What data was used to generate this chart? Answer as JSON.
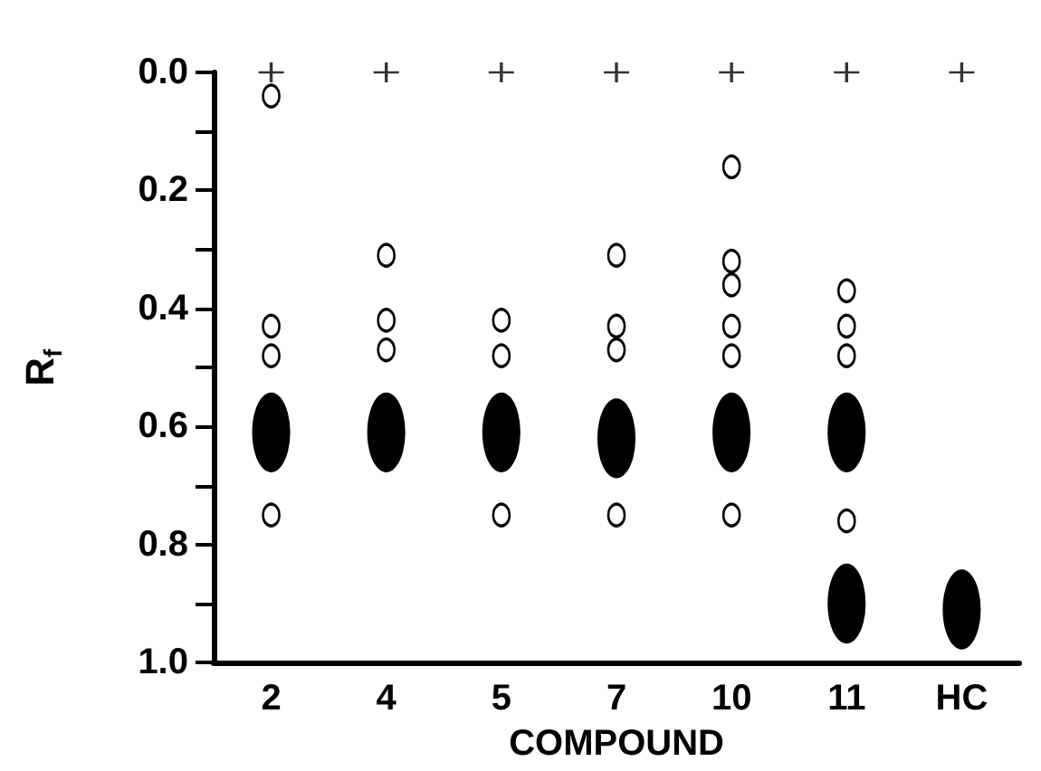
{
  "chart_data": {
    "type": "scatter",
    "xlabel": "COMPOUND",
    "ylabel": "R$_{f}$",
    "categories": [
      "2",
      "4",
      "5",
      "7",
      "10",
      "11",
      "HC"
    ],
    "series": [
      {
        "marker": "cross",
        "color": "#000000",
        "x": [
          "2",
          "4",
          "5",
          "7",
          "10",
          "11",
          "HC"
        ],
        "values": [
          0,
          0,
          0,
          0,
          0,
          0,
          0
        ]
      },
      {
        "marker": "circle",
        "color": "#ffffff",
        "x": [
          "2",
          "2",
          "2",
          "2",
          "4",
          "4",
          "4",
          "5",
          "5",
          "5",
          "7",
          "7",
          "7",
          "7",
          "10",
          "10",
          "10",
          "10",
          "10",
          "10",
          "11",
          "11",
          "11",
          "11"
        ],
        "values": [
          0.04,
          0.43,
          0.48,
          0.75,
          0.31,
          0.42,
          0.47,
          0.42,
          0.48,
          0.75,
          0.31,
          0.43,
          0.47,
          0.75,
          0.16,
          0.32,
          0.36,
          0.43,
          0.48,
          0.75,
          0.37,
          0.43,
          0.48,
          0.76
        ]
      },
      {
        "marker": "circle",
        "color": "#000000",
        "x": [
          "2",
          "4",
          "5",
          "7",
          "10",
          "11",
          "11",
          "HC"
        ],
        "values": [
          0.61,
          0.61,
          0.61,
          0.62,
          0.61,
          0.61,
          0.9,
          0.91
        ]
      }
    ],
    "ylim": [
      1.0,
      0.0
    ],
    "yticks": [
      {
        "value": 0,
        "label": "0.0"
      },
      {
        "value": 0.1,
        "label": null
      },
      0.2,
      {
        "value": 0.3,
        "label": null
      },
      0.4,
      {
        "value": 0.5,
        "label": null
      },
      0.6,
      {
        "value": 0.7,
        "label": null
      },
      0.8,
      {
        "value": 0.9,
        "label": null
      },
      {
        "value": 1.0,
        "label": "1.0"
      }
    ],
    "grid": false
  }
}
